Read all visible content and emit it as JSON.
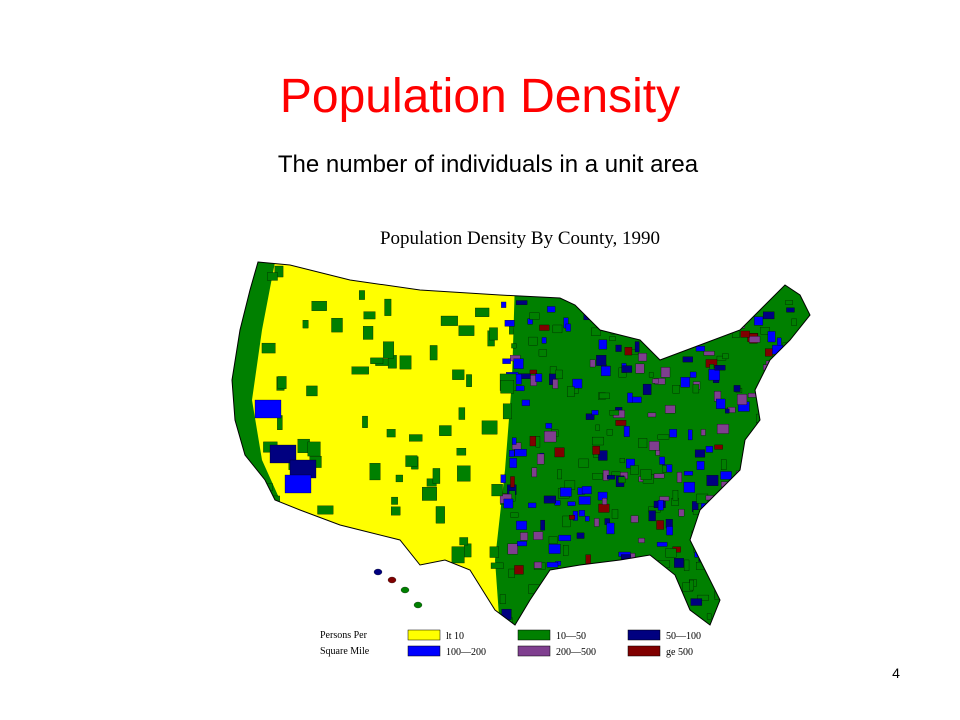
{
  "title": "Population Density",
  "subtitle": "The number of individuals in a unit area",
  "map": {
    "title": "Population Density By County, 1990",
    "legend": {
      "heading": [
        "Persons Per",
        "Square Mile"
      ],
      "items": [
        {
          "label": "lt 10",
          "color": "#ffff00"
        },
        {
          "label": "10—50",
          "color": "#008000"
        },
        {
          "label": "50—100",
          "color": "#000080"
        },
        {
          "label": "100—200",
          "color": "#0000ff"
        },
        {
          "label": "200—500",
          "color": "#7f3f8f"
        },
        {
          "label": "ge 500",
          "color": "#800000"
        }
      ]
    }
  },
  "page_number": "4"
}
